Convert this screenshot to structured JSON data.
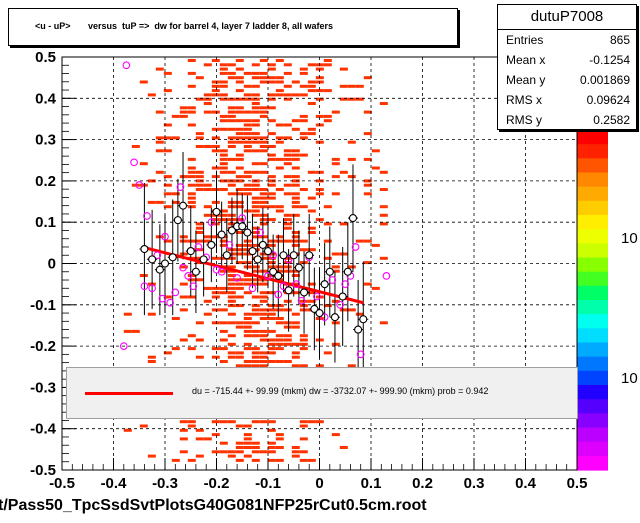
{
  "title": "<u - uP>       versus  tuP =>  dw for barrel 4, layer 7 ladder 8, all wafers",
  "footer": "t/Pass50_TpcSsdSvtPlotsG40G081NFP25rCut0.5cm.root",
  "stats": {
    "name": "dutuP7008",
    "rows": [
      {
        "k": "Entries",
        "v": "865"
      },
      {
        "k": "Mean x",
        "v": "-0.1254"
      },
      {
        "k": "Mean y",
        "v": "0.001869"
      },
      {
        "k": "RMS x",
        "v": "0.09624"
      },
      {
        "k": "RMS y",
        "v": "0.2582"
      }
    ]
  },
  "fit_text": "du = -715.44 +- 99.99 (mkm) dw = -3732.07 +- 999.90 (mkm) prob = 0.942",
  "colorbar_labels": [
    "10",
    "10"
  ],
  "chart_data": {
    "type": "scatter",
    "xlim": [
      -0.5,
      0.5
    ],
    "ylim": [
      -0.5,
      0.5
    ],
    "xticks": [
      "-0.5",
      "-0.4",
      "-0.3",
      "-0.2",
      "-0.1",
      "0",
      "0.1",
      "0.2",
      "0.3",
      "0.4",
      "0.5"
    ],
    "yticks": [
      "-0.5",
      "-0.4",
      "-0.3",
      "-0.2",
      "-0.1",
      "0",
      "0.1",
      "0.2",
      "0.3",
      "0.4",
      "0.5"
    ],
    "grid": true,
    "colors": {
      "hist": "#ff3300",
      "fit": "#ff0000",
      "open": "#000000",
      "magenta": "#ff00ff"
    },
    "fit_line": {
      "x": [
        -0.345,
        0.085
      ],
      "y": [
        0.04,
        -0.095
      ]
    },
    "profile_points": [
      {
        "x": -0.34,
        "y": 0.035,
        "e": 0.16
      },
      {
        "x": -0.325,
        "y": 0.01,
        "e": 0.12
      },
      {
        "x": -0.31,
        "y": -0.015,
        "e": 0.11
      },
      {
        "x": -0.3,
        "y": 0.0,
        "e": 0.12
      },
      {
        "x": -0.285,
        "y": 0.015,
        "e": 0.14
      },
      {
        "x": -0.275,
        "y": 0.105,
        "e": 0.1
      },
      {
        "x": -0.265,
        "y": 0.14,
        "e": 0.13
      },
      {
        "x": -0.25,
        "y": 0.03,
        "e": 0.11
      },
      {
        "x": -0.24,
        "y": -0.02,
        "e": 0.1
      },
      {
        "x": -0.225,
        "y": 0.01,
        "e": 0.09
      },
      {
        "x": -0.21,
        "y": 0.045,
        "e": 0.09
      },
      {
        "x": -0.2,
        "y": 0.125,
        "e": 0.1
      },
      {
        "x": -0.19,
        "y": 0.07,
        "e": 0.08
      },
      {
        "x": -0.18,
        "y": 0.02,
        "e": 0.09
      },
      {
        "x": -0.17,
        "y": 0.08,
        "e": 0.08
      },
      {
        "x": -0.16,
        "y": 0.09,
        "e": 0.09
      },
      {
        "x": -0.15,
        "y": 0.09,
        "e": 0.08
      },
      {
        "x": -0.14,
        "y": 0.075,
        "e": 0.09
      },
      {
        "x": -0.13,
        "y": 0.03,
        "e": 0.09
      },
      {
        "x": -0.12,
        "y": 0.01,
        "e": 0.08
      },
      {
        "x": -0.11,
        "y": 0.045,
        "e": 0.09
      },
      {
        "x": -0.1,
        "y": 0.03,
        "e": 0.09
      },
      {
        "x": -0.09,
        "y": -0.02,
        "e": 0.09
      },
      {
        "x": -0.08,
        "y": -0.03,
        "e": 0.1
      },
      {
        "x": -0.07,
        "y": 0.02,
        "e": 0.09
      },
      {
        "x": -0.06,
        "y": -0.065,
        "e": 0.1
      },
      {
        "x": -0.05,
        "y": 0.02,
        "e": 0.1
      },
      {
        "x": -0.04,
        "y": -0.01,
        "e": 0.09
      },
      {
        "x": -0.03,
        "y": -0.07,
        "e": 0.1
      },
      {
        "x": -0.02,
        "y": 0.02,
        "e": 0.1
      },
      {
        "x": -0.01,
        "y": -0.11,
        "e": 0.1
      },
      {
        "x": 0.0,
        "y": -0.12,
        "e": 0.11
      },
      {
        "x": 0.01,
        "y": -0.05,
        "e": 0.1
      },
      {
        "x": 0.02,
        "y": -0.02,
        "e": 0.11
      },
      {
        "x": 0.03,
        "y": -0.13,
        "e": 0.11
      },
      {
        "x": 0.045,
        "y": -0.08,
        "e": 0.12
      },
      {
        "x": 0.055,
        "y": -0.02,
        "e": 0.12
      },
      {
        "x": 0.065,
        "y": 0.11,
        "e": 0.13
      },
      {
        "x": 0.075,
        "y": -0.16,
        "e": 0.12
      },
      {
        "x": 0.085,
        "y": -0.135,
        "e": 0.14
      }
    ],
    "magenta_points": [
      {
        "x": -0.375,
        "y": 0.48
      },
      {
        "x": -0.36,
        "y": 0.245
      },
      {
        "x": -0.35,
        "y": 0.19
      },
      {
        "x": -0.34,
        "y": -0.055
      },
      {
        "x": -0.335,
        "y": 0.115
      },
      {
        "x": -0.325,
        "y": -0.06
      },
      {
        "x": -0.315,
        "y": 0.02
      },
      {
        "x": -0.305,
        "y": -0.085
      },
      {
        "x": -0.3,
        "y": 0.065
      },
      {
        "x": -0.29,
        "y": -0.095
      },
      {
        "x": -0.28,
        "y": -0.07
      },
      {
        "x": -0.27,
        "y": 0.185
      },
      {
        "x": -0.265,
        "y": -0.01
      },
      {
        "x": -0.255,
        "y": -0.03
      },
      {
        "x": -0.245,
        "y": -0.055
      },
      {
        "x": -0.235,
        "y": 0.04
      },
      {
        "x": -0.22,
        "y": 0.015
      },
      {
        "x": -0.21,
        "y": 0.1
      },
      {
        "x": -0.2,
        "y": -0.015
      },
      {
        "x": -0.19,
        "y": -0.02
      },
      {
        "x": -0.175,
        "y": 0.045
      },
      {
        "x": -0.16,
        "y": -0.035
      },
      {
        "x": -0.15,
        "y": 0.11
      },
      {
        "x": -0.13,
        "y": -0.06
      },
      {
        "x": -0.115,
        "y": 0.075
      },
      {
        "x": -0.1,
        "y": -0.03
      },
      {
        "x": -0.09,
        "y": 0.02
      },
      {
        "x": -0.08,
        "y": -0.075
      },
      {
        "x": -0.07,
        "y": -0.055
      },
      {
        "x": -0.06,
        "y": 0.01
      },
      {
        "x": -0.045,
        "y": -0.05
      },
      {
        "x": -0.035,
        "y": -0.09
      },
      {
        "x": -0.02,
        "y": 0.015
      },
      {
        "x": -0.005,
        "y": -0.08
      },
      {
        "x": 0.01,
        "y": -0.13
      },
      {
        "x": 0.025,
        "y": -0.04
      },
      {
        "x": 0.04,
        "y": -0.1
      },
      {
        "x": 0.05,
        "y": -0.05
      },
      {
        "x": 0.06,
        "y": -0.03
      },
      {
        "x": 0.07,
        "y": 0.04
      },
      {
        "x": 0.08,
        "y": -0.22
      },
      {
        "x": 0.13,
        "y": -0.03
      },
      {
        "x": -0.38,
        "y": -0.2
      }
    ]
  }
}
